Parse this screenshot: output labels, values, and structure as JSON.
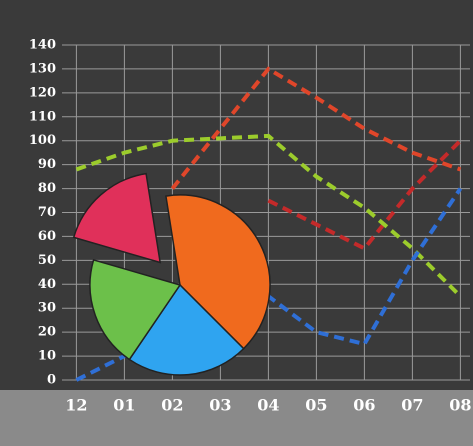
{
  "chart_data": [
    {
      "type": "line",
      "categories": [
        "12",
        "01",
        "02",
        "03",
        "04",
        "05",
        "06",
        "07",
        "08"
      ],
      "ylim": [
        0,
        140
      ],
      "yticks": [
        0,
        10,
        20,
        30,
        40,
        50,
        60,
        70,
        80,
        90,
        100,
        110,
        120,
        130,
        140
      ],
      "grid": true,
      "series": [
        {
          "color": "#e0462a",
          "values": [
            null,
            null,
            80,
            105,
            130,
            118,
            105,
            95,
            88
          ]
        },
        {
          "color": "#c42a2a",
          "values": [
            null,
            null,
            null,
            null,
            75,
            65,
            55,
            80,
            100
          ]
        },
        {
          "color": "#9ccc2c",
          "values": [
            88,
            95,
            100,
            101,
            102,
            85,
            72,
            55,
            35
          ]
        },
        {
          "color": "#2f6fd6",
          "values": [
            0,
            10,
            20,
            28,
            35,
            20,
            15,
            50,
            80
          ]
        }
      ]
    },
    {
      "type": "pie",
      "values": [
        40,
        22,
        20,
        18
      ],
      "colors": [
        "#f06a1e",
        "#2fa4f0",
        "#6cc04a",
        "#e0305a"
      ]
    }
  ]
}
